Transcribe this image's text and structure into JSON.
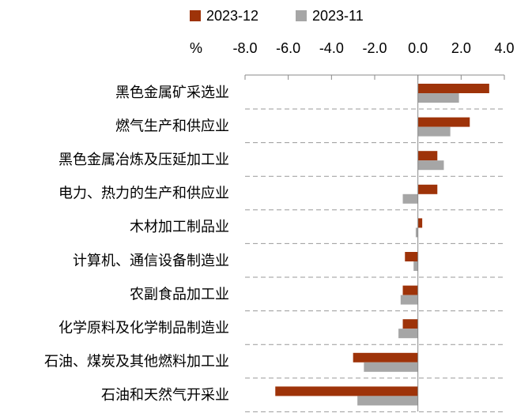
{
  "chart_data": {
    "type": "hbar",
    "xlabel": "%",
    "categories": [
      "黑色金属矿采选业",
      "燃气生产和供应业",
      "黑色金属冶炼及压延加工业",
      "电力、热力的生产和供应业",
      "木材加工制品业",
      "计算机、通信设备制造业",
      "农副食品加工业",
      "化学原料及化学制品制造业",
      "石油、煤炭及其他燃料加工业",
      "石油和天然气开采业"
    ],
    "series": [
      {
        "name": "2023-12",
        "color": "#9e3309",
        "values": [
          3.3,
          2.4,
          0.9,
          0.9,
          0.2,
          -0.6,
          -0.7,
          -0.7,
          -3.0,
          -6.6
        ]
      },
      {
        "name": "2023-11",
        "color": "#a6a6a6",
        "values": [
          1.9,
          1.5,
          1.2,
          -0.7,
          -0.1,
          -0.2,
          -0.8,
          -0.9,
          -2.5,
          -2.8
        ]
      }
    ],
    "xlim": [
      -8,
      4
    ],
    "xticks": [
      {
        "value": -8,
        "label": "-8.0"
      },
      {
        "value": -6,
        "label": "-6.0"
      },
      {
        "value": -4,
        "label": "-4.0"
      },
      {
        "value": -2,
        "label": "-2.0"
      },
      {
        "value": 0,
        "label": "0.0"
      },
      {
        "value": 2,
        "label": "2.0"
      },
      {
        "value": 4,
        "label": "4.0"
      }
    ],
    "legend": "top"
  }
}
